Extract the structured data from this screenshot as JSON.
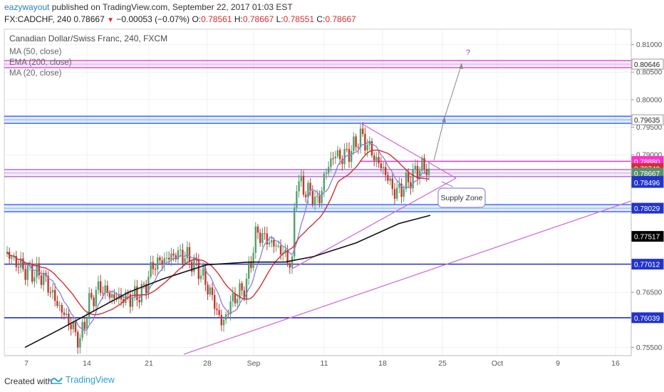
{
  "header": {
    "author": "eazywayout",
    "published": " published on TradingView.com, September 22, 2017 01:03 EST",
    "symbol": "FX:CADCHF, 240",
    "last": "0.78667",
    "change": "−0.00053 (−0.07%)",
    "o_label": "O:",
    "o_value": "0.78561",
    "h_label": "H:",
    "h_value": "0.78667",
    "l_label": "L:",
    "l_value": "0.78551",
    "c_label": "C:",
    "c_value": "0.78667",
    "down_arrow_icon": "triangle-down-icon"
  },
  "chart": {
    "title": "Canadian Dollar/Swiss Franc, 240, FXCM",
    "indicators": [
      "MA (50, close)",
      "EMA (200, close)",
      "MA (20, close)"
    ],
    "annotation_question": "?",
    "supply_zone_label": "Supply Zone"
  },
  "footer": {
    "created_with": "Created with",
    "brand": "TradingView",
    "brand_icon": "tradingview-logo-icon"
  },
  "chart_data": {
    "type": "line",
    "title": "Canadian Dollar/Swiss Franc, 240, FXCM",
    "x_ticks": [
      "7",
      "14",
      "21",
      "28",
      "Sep",
      "11",
      "18",
      "25",
      "Oct",
      "9",
      "16"
    ],
    "y_ticks": [
      "0.81000",
      "0.80500",
      "0.80000",
      "0.79500",
      "0.79000",
      "0.76500",
      "0.75500"
    ],
    "ylim": [
      0.7535,
      0.8128
    ],
    "price_labels": [
      {
        "value": 0.80646,
        "text": "0.80646",
        "bg": "#ffffff",
        "fg": "#222222",
        "border": "#999999"
      },
      {
        "value": 0.79635,
        "text": "0.79635",
        "bg": "#ffffff",
        "fg": "#222222",
        "border": "#999999"
      },
      {
        "value": 0.7888,
        "text": "0.78880",
        "bg": "#ff33cc",
        "fg": "#ffffff",
        "border": "#ff33cc"
      },
      {
        "value": 0.78749,
        "text": "0.78749",
        "bg": "#d32f2f",
        "fg": "#ffffff",
        "border": "#d32f2f"
      },
      {
        "value": 0.78667,
        "text": "0.78667",
        "bg": "#5b8f6e",
        "fg": "#ffffff",
        "border": "#5b8f6e"
      },
      {
        "value": 0.78517,
        "text": "0.78517",
        "bg": "#2233cc",
        "fg": "#ffffff",
        "border": "#2233cc"
      },
      {
        "value": 0.78496,
        "text": "0.78496",
        "bg": "#2233cc",
        "fg": "#ffffff",
        "border": "#2233cc"
      },
      {
        "value": 0.78029,
        "text": "0.78029",
        "bg": "#2233cc",
        "fg": "#ffffff",
        "border": "#2233cc"
      },
      {
        "value": 0.77517,
        "text": "0.77517",
        "bg": "#000000",
        "fg": "#ffffff",
        "border": "#000000"
      },
      {
        "value": 0.77012,
        "text": "0.77012",
        "bg": "#2233cc",
        "fg": "#ffffff",
        "border": "#2233cc"
      },
      {
        "value": 0.76039,
        "text": "0.76039",
        "bg": "#2233cc",
        "fg": "#ffffff",
        "border": "#2233cc"
      }
    ],
    "horizontal_levels": [
      {
        "value": 0.80646,
        "color": "#d24bd2",
        "band": true
      },
      {
        "value": 0.79635,
        "color": "#2962ff",
        "band": true
      },
      {
        "value": 0.7888,
        "color": "#ff33cc",
        "band": false
      },
      {
        "value": 0.78667,
        "color": "#b06ad6",
        "band": true
      },
      {
        "value": 0.78029,
        "color": "#2962ff",
        "band": true
      },
      {
        "value": 0.77012,
        "color": "#2233cc",
        "band": false
      },
      {
        "value": 0.76039,
        "color": "#2233cc",
        "band": false
      }
    ],
    "series": [
      {
        "name": "MA (50, close)",
        "color": "#d32f2f"
      },
      {
        "name": "EMA (200, close)",
        "color": "#111111"
      },
      {
        "name": "MA (20, close)",
        "color": "#8a7fd6"
      }
    ],
    "colors": {
      "up": "#53a06b",
      "down": "#c0392b",
      "ma50": "#d32f2f",
      "ema200": "#111111",
      "ma20": "#8a7fd6",
      "trend": "#d36ed8",
      "projection": "#888888"
    },
    "grid": true,
    "legend": "top-left"
  }
}
